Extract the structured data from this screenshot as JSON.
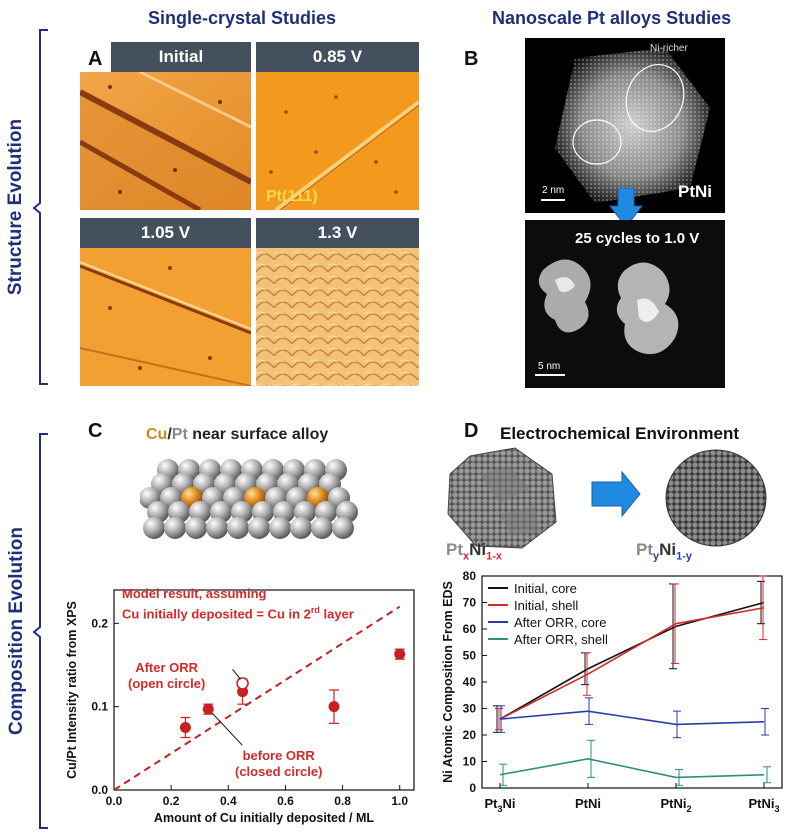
{
  "sections": {
    "structure": "Structure Evolution",
    "composition": "Composition Evolution"
  },
  "panelA": {
    "letter": "A",
    "header": "Single-crystal Studies",
    "tiles": [
      "Initial",
      "0.85 V",
      "1.05 V",
      "1.3 V"
    ],
    "surface_label": "Pt(111)"
  },
  "panelB": {
    "letter": "B",
    "header": "Nanoscale Pt alloys Studies",
    "ni_richer": "Ni-richer",
    "scale1": "2 nm",
    "material": "PtNi",
    "cycles": "25 cycles to 1.0 V",
    "scale2": "5 nm"
  },
  "panelC": {
    "letter": "C",
    "title_cu": "Cu",
    "title_slash": "/",
    "title_pt": "Pt",
    "title_rest": " near surface alloy",
    "model_line1": "Model result, assuming",
    "model_line2": "Cu initially deposited = Cu in 2",
    "model_sup": "rd",
    "model_line2_end": " layer",
    "after_label1": "After ORR",
    "after_label2": "(open circle)",
    "before_label1": "before ORR",
    "before_label2": "(closed circle)"
  },
  "panelD": {
    "letter": "D",
    "title": "Electrochemical Environment",
    "formula_left": {
      "a": "Pt",
      "b": "x",
      "c": "Ni",
      "d": "1-x"
    },
    "formula_right": {
      "a": "Pt",
      "b": "y",
      "c": "Ni",
      "d": "1-y"
    }
  },
  "chart_data": [
    {
      "type": "scatter",
      "title": "",
      "xlabel": "Amount of Cu initially deposited / ML",
      "ylabel": "Cu/Pt Intensity ratio from XPS",
      "xlim": [
        0,
        1.05
      ],
      "ylim": [
        0,
        0.24
      ],
      "xticks": [
        "0.0",
        "0.2",
        "0.4",
        "0.6",
        "0.8",
        "1.0"
      ],
      "yticks": [
        "0.0",
        "0.1",
        "0.2"
      ],
      "series": [
        {
          "name": "before ORR (closed circle)",
          "points": [
            {
              "x": 0.25,
              "y": 0.075,
              "err": 0.012
            },
            {
              "x": 0.33,
              "y": 0.097,
              "err": 0.006
            },
            {
              "x": 0.45,
              "y": 0.118,
              "err": 0.015
            },
            {
              "x": 0.77,
              "y": 0.1,
              "err": 0.02
            },
            {
              "x": 1.0,
              "y": 0.163,
              "err": 0.006
            }
          ]
        },
        {
          "name": "After ORR (open circle)",
          "points": [
            {
              "x": 0.45,
              "y": 0.128,
              "err": 0
            }
          ]
        },
        {
          "name": "Model result",
          "line": [
            [
              0,
              0
            ],
            [
              1.0,
              0.22
            ]
          ]
        }
      ]
    },
    {
      "type": "line",
      "title": "",
      "xlabel": "",
      "ylabel": "Ni Atomic Composition From EDS",
      "categories": [
        "Pt3Ni",
        "PtNi",
        "PtNi2",
        "PtNi3"
      ],
      "ylim": [
        0,
        80
      ],
      "yticks": [
        "0",
        "10",
        "20",
        "30",
        "40",
        "50",
        "60",
        "70",
        "80"
      ],
      "series": [
        {
          "name": "Initial, core",
          "color": "#111111",
          "values": [
            26,
            45,
            61,
            70
          ],
          "err": [
            5,
            6,
            16,
            8
          ]
        },
        {
          "name": "Initial, shell",
          "color": "#d42a2a",
          "values": [
            26,
            43,
            62,
            68
          ],
          "err": [
            4,
            8,
            15,
            12
          ]
        },
        {
          "name": "After ORR, core",
          "color": "#2a3aa8",
          "values": [
            26,
            29,
            24,
            25
          ],
          "err": [
            5,
            5,
            5,
            5
          ]
        },
        {
          "name": "After ORR, shell",
          "color": "#2f8f7a",
          "values": [
            5,
            11,
            4,
            5
          ],
          "err": [
            4,
            7,
            3,
            3
          ]
        }
      ]
    }
  ]
}
